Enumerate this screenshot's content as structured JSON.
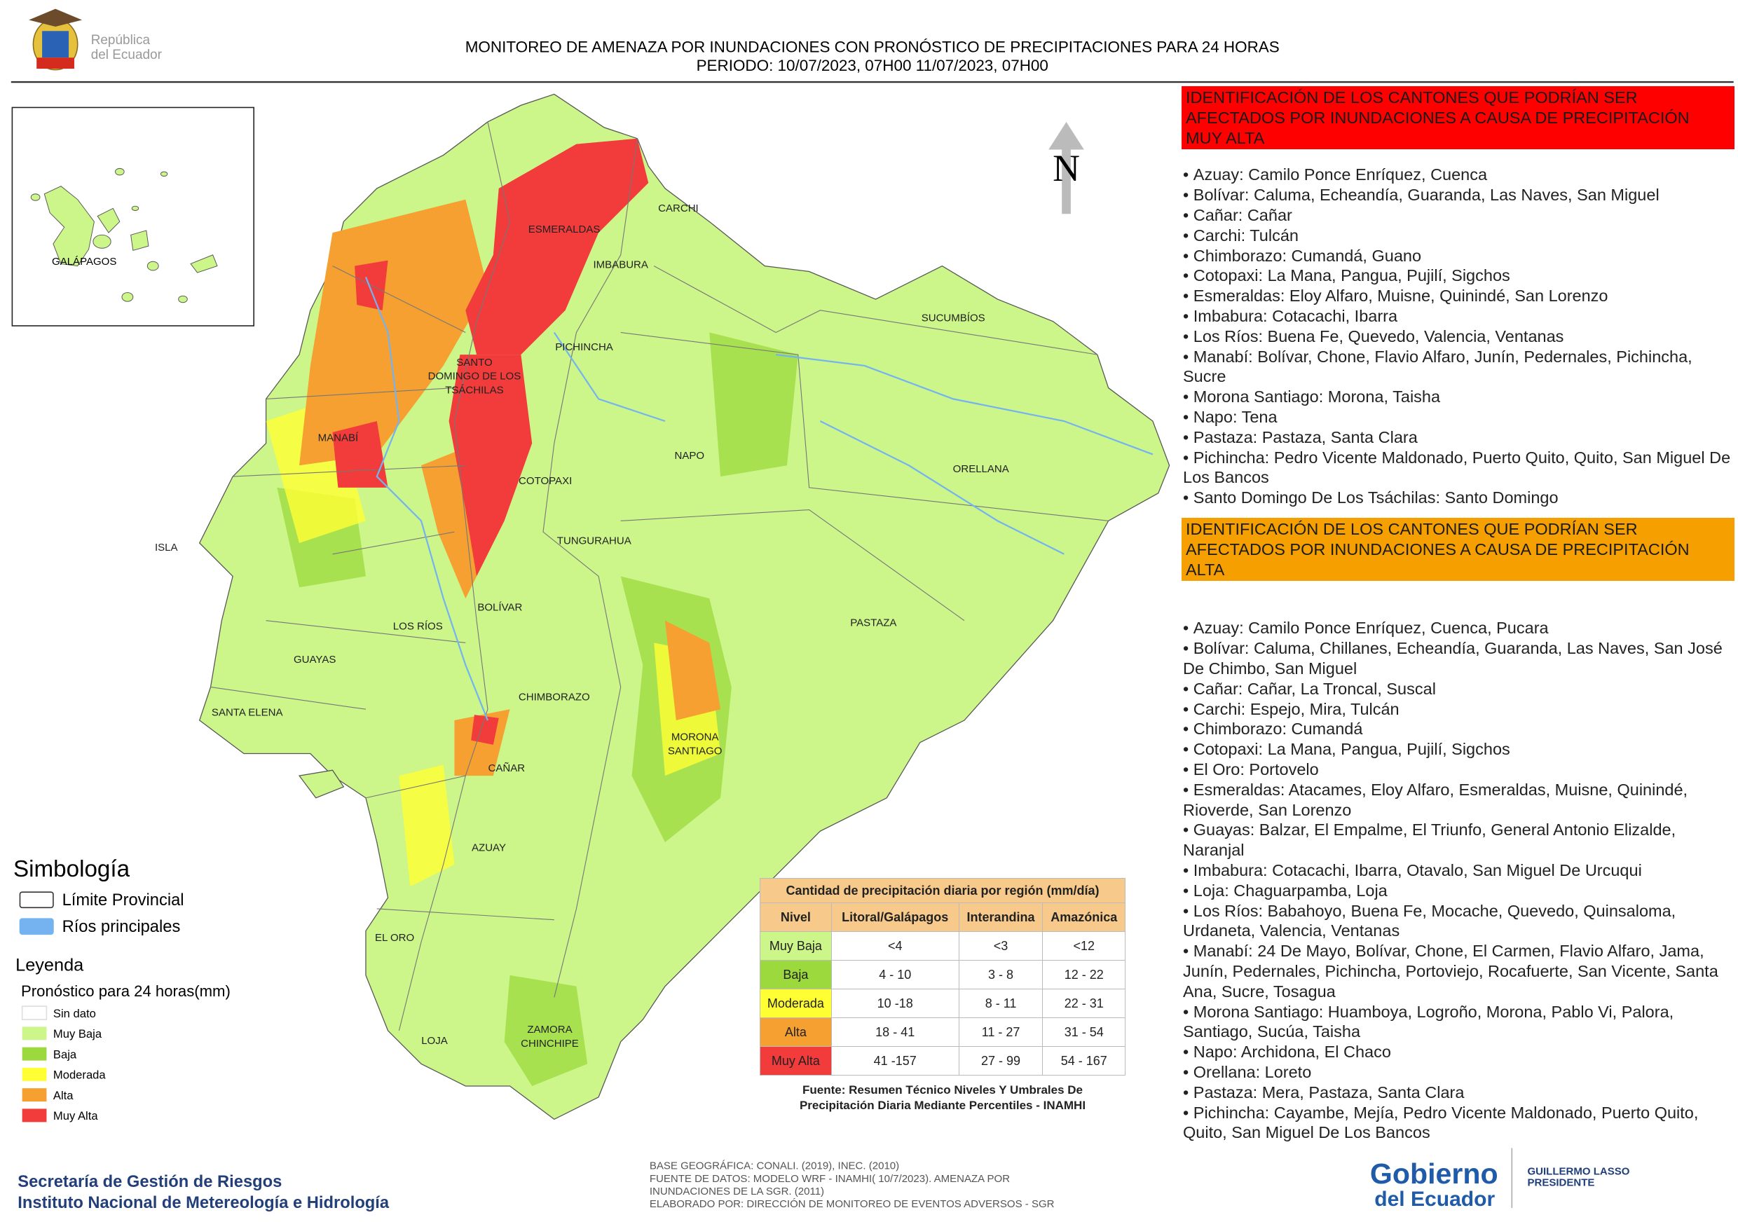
{
  "header": {
    "logo": [
      "República",
      "del Ecuador"
    ],
    "title": "MONITOREO DE AMENAZA POR INUNDACIONES  CON PRONÓSTICO DE  PRECIPITACIONES PARA 24 HORAS",
    "period": "PERIODO: 10/07/2023, 07H00 11/07/2023, 07H00"
  },
  "map": {
    "north": "N",
    "inset_label": "GALÁPAGOS",
    "provinces": [
      [
        "CARCHI"
      ],
      [
        "ESMERALDAS"
      ],
      [
        "IMBABURA"
      ],
      [
        "SUCUMBÍOS"
      ],
      [
        "PICHINCHA"
      ],
      [
        "SANTO",
        "DOMINGO DE LOS",
        "TSÁCHILAS"
      ],
      [
        "MANABÍ"
      ],
      [
        "NAPO"
      ],
      [
        "ORELLANA"
      ],
      [
        "COTOPAXI"
      ],
      [
        "ISLA"
      ],
      [
        "TUNGURAHUA"
      ],
      [
        "BOLÍVAR"
      ],
      [
        "PASTAZA"
      ],
      [
        "LOS RÍOS"
      ],
      [
        "GUAYAS"
      ],
      [
        "CHIMBORAZO"
      ],
      [
        "SANTA ELENA"
      ],
      [
        "MORONA",
        "SANTIAGO"
      ],
      [
        "CAÑAR"
      ],
      [
        "AZUAY"
      ],
      [
        "EL ORO"
      ],
      [
        "ZAMORA",
        "CHINCHIPE"
      ],
      [
        "LOJA"
      ]
    ]
  },
  "lists": {
    "very_high": {
      "heading": "IDENTIFICACIÓN DE LOS CANTONES QUE PODRÍAN SER AFECTADOS POR INUNDACIONES  A CAUSA DE PRECIPITACIÓN MUY ALTA",
      "color": "#ff0000",
      "items": [
        "Azuay: Camilo Ponce Enríquez, Cuenca",
        "Bolívar: Caluma, Echeandía, Guaranda, Las Naves, San Miguel",
        "Cañar: Cañar",
        "Carchi: Tulcán",
        "Chimborazo: Cumandá, Guano",
        "Cotopaxi: La Mana, Pangua, Pujilí, Sigchos",
        "Esmeraldas: Eloy Alfaro, Muisne, Quinindé, San Lorenzo",
        "Imbabura: Cotacachi, Ibarra",
        "Los Ríos: Buena Fe, Quevedo, Valencia, Ventanas",
        "Manabí: Bolívar, Chone, Flavio Alfaro, Junín, Pedernales, Pichincha, Sucre",
        "Morona Santiago: Morona, Taisha",
        "Napo: Tena",
        "Pastaza: Pastaza, Santa Clara",
        "Pichincha: Pedro Vicente Maldonado, Puerto Quito, Quito, San Miguel De Los Bancos",
        "Santo Domingo De Los Tsáchilas: Santo Domingo"
      ]
    },
    "high": {
      "heading": "IDENTIFICACIÓN DE LOS CANTONES QUE  PODRÍAN SER AFECTADOS POR INUNDACIONES  A CAUSA DE PRECIPITACIÓN ALTA",
      "color": "#f5a000",
      "items": [
        "Azuay: Camilo Ponce Enríquez, Cuenca, Pucara",
        "Bolívar: Caluma, Chillanes, Echeandía, Guaranda, Las Naves, San José De Chimbo, San Miguel",
        "Cañar: Cañar, La Troncal, Suscal",
        "Carchi: Espejo, Mira, Tulcán",
        "Chimborazo: Cumandá",
        "Cotopaxi: La Mana, Pangua, Pujilí, Sigchos",
        "El Oro: Portovelo",
        "Esmeraldas: Atacames, Eloy Alfaro, Esmeraldas, Muisne, Quinindé, Rioverde, San Lorenzo",
        "Guayas: Balzar, El Empalme, El Triunfo, General Antonio Elizalde, Naranjal",
        "Imbabura: Cotacachi, Ibarra, Otavalo, San Miguel De Urcuqui",
        "Loja: Chaguarpamba, Loja",
        "Los Ríos: Babahoyo, Buena Fe, Mocache, Quevedo, Quinsaloma, Urdaneta, Valencia, Ventanas",
        "Manabí: 24 De Mayo, Bolívar, Chone, El Carmen, Flavio Alfaro, Jama, Junín, Pedernales, Pichincha, Portoviejo, Rocafuerte, San Vicente, Santa Ana, Sucre, Tosagua",
        "Morona Santiago: Huamboya, Logroño, Morona, Pablo Vi, Palora, Santiago, Sucúa, Taisha",
        "Napo: Archidona, El Chaco",
        "Orellana: Loreto",
        "Pastaza: Mera, Pastaza, Santa Clara",
        "Pichincha: Cayambe, Mejía, Pedro Vicente Maldonado, Puerto Quito, Quito, San Miguel De Los Bancos"
      ]
    }
  },
  "legend": {
    "simbologia": "Simbología",
    "symbols": [
      {
        "name": "Límite Provincial",
        "color": "#ffffff"
      },
      {
        "name": "Ríos principales",
        "color": "#74b3f0"
      }
    ],
    "leyenda": "Leyenda",
    "subtitle": "Pronóstico para 24 horas(mm)",
    "classes": [
      {
        "name": "Sin dato",
        "color": "#ffffff"
      },
      {
        "name": "Muy Baja",
        "color": "#ccf58a"
      },
      {
        "name": "Baja",
        "color": "#9bd93c"
      },
      {
        "name": "Moderada",
        "color": "#ffff33"
      },
      {
        "name": "Alta",
        "color": "#f5a030"
      },
      {
        "name": "Muy Alta",
        "color": "#f23b3b"
      }
    ]
  },
  "table": {
    "title": "Cantidad de precipitación diaria por región (mm/día)",
    "headers": [
      "Nivel",
      "Litoral/Galápagos",
      "Interandina",
      "Amazónica"
    ],
    "rows": [
      [
        "Muy Baja",
        "<4",
        "<3",
        "<12"
      ],
      [
        "Baja",
        "4 - 10",
        "3 - 8",
        "12 - 22"
      ],
      [
        "Moderada",
        "10 -18",
        "8 - 11",
        "22 - 31"
      ],
      [
        "Alta",
        "18 - 41",
        "11 - 27",
        "31 - 54"
      ],
      [
        "Muy Alta",
        "41 -157",
        "27 - 99",
        "54 - 167"
      ]
    ],
    "source": [
      "Fuente: Resumen Técnico Niveles Y Umbrales De",
      "Precipitación Diaria Mediante Percentiles - INAMHI"
    ]
  },
  "footer": {
    "institutions": [
      "Secretaría de Gestión de Riesgos",
      "Instituto Nacional de Metereología e Hidrología"
    ],
    "notes": [
      "BASE GEOGRÁFICA: CONALI. (2019), INEC. (2010)",
      "FUENTE DE DATOS: MODELO WRF - INAMHI( 10/7/2023).  AMENAZA POR",
      "INUNDACIONES DE LA SGR. (2011)",
      "ELABORADO POR: DIRECCIÓN DE MONITOREO DE EVENTOS ADVERSOS - SGR"
    ],
    "gobierno": [
      "Gobierno",
      "del Ecuador"
    ],
    "president": [
      "GUILLERMO LASSO",
      "PRESIDENTE"
    ]
  }
}
